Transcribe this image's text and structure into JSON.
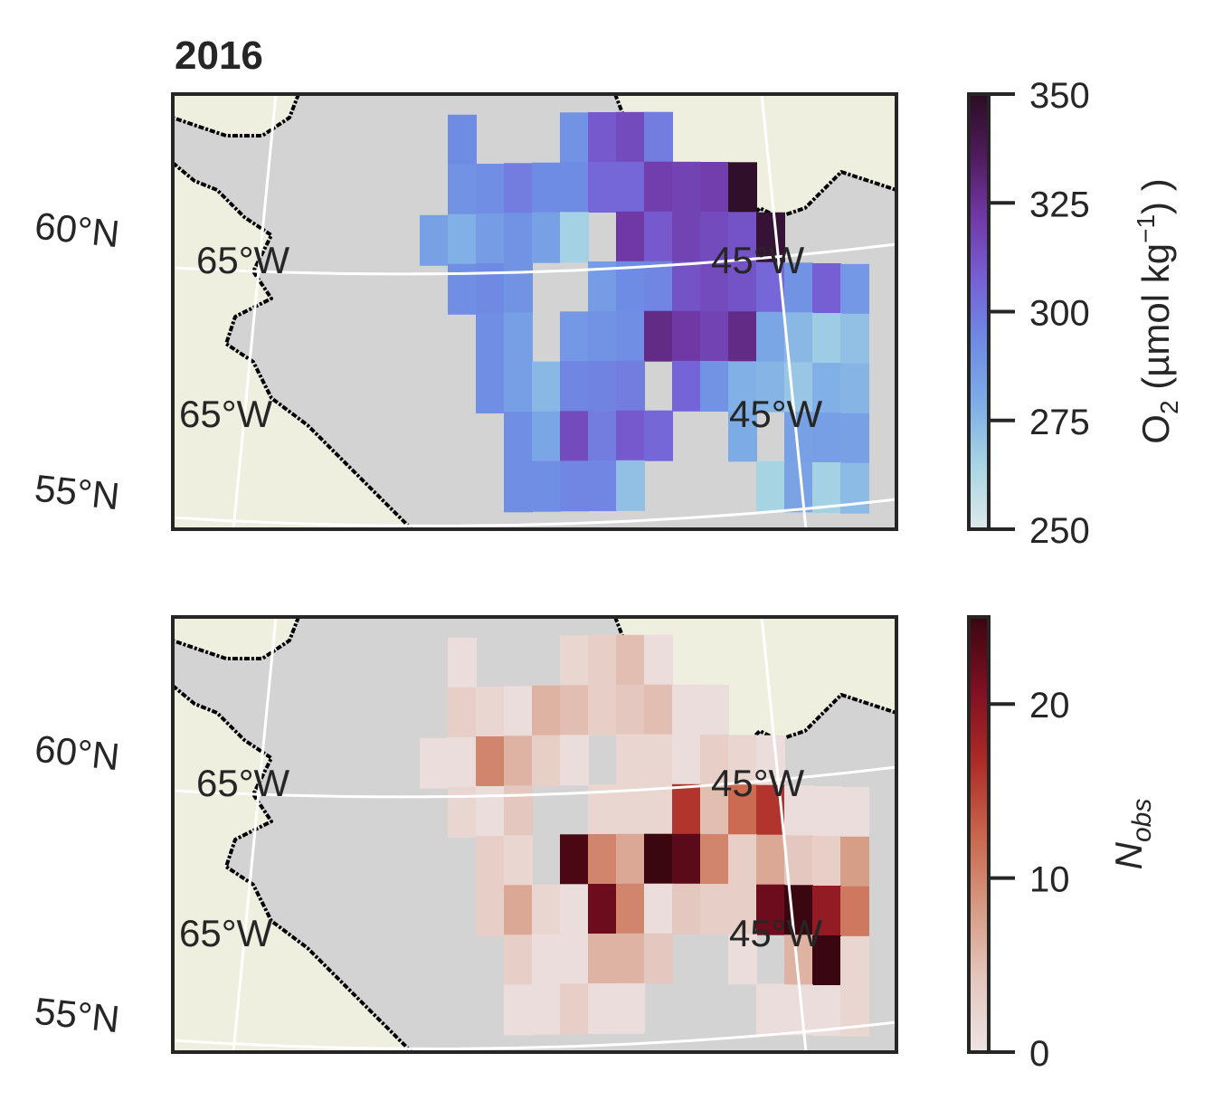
{
  "title": "2016",
  "colors": {
    "ocean": "#d3d3d3",
    "land": "#efefdf",
    "coast": "#000000",
    "grid": "#ffffff",
    "frame": "#262626",
    "o2_colormap": [
      "#dde9ea",
      "#a9d6e3",
      "#7eaee6",
      "#6f8ce4",
      "#7661d6",
      "#7139a8",
      "#501b5e",
      "#2a0d22"
    ],
    "nobs_colormap": [
      "#ede4e4",
      "#e4c7bd",
      "#d69a82",
      "#c8654c",
      "#ad2b27",
      "#7f0f22",
      "#3a0610"
    ]
  },
  "grid_labels": {
    "lat_north": "60°N",
    "lat_south": "55°N",
    "lon_west": "65°W",
    "lon_east": "45°W"
  },
  "chart_data": [
    {
      "type": "heatmap",
      "name": "dissolved oxygen",
      "colorbar": {
        "label_main": "O",
        "label_sub": "2",
        "label_rest": " (µmol kg",
        "label_sup": "−1",
        "label_end": ") )",
        "min": 250,
        "max": 350,
        "ticks": [
          "250",
          "275",
          "300",
          "325",
          "350"
        ]
      },
      "lat_lines": [
        "55°N",
        "60°N"
      ],
      "lon_lines": [
        "65°W",
        "45°W"
      ],
      "rows": [
        [
          null,
          null,
          null,
          293,
          null,
          null,
          null,
          290,
          310,
          315,
          298,
          null,
          null,
          null,
          null,
          null,
          null,
          null
        ],
        [
          null,
          null,
          null,
          290,
          292,
          298,
          293,
          293,
          305,
          305,
          320,
          318,
          320,
          348,
          null,
          null,
          null,
          null
        ],
        [
          null,
          null,
          284,
          278,
          286,
          290,
          284,
          266,
          null,
          322,
          310,
          318,
          315,
          312,
          345,
          null,
          null,
          null
        ],
        [
          null,
          null,
          null,
          292,
          294,
          290,
          null,
          null,
          286,
          293,
          295,
          312,
          315,
          312,
          305,
          290,
          308,
          288
        ],
        [
          null,
          null,
          null,
          null,
          292,
          285,
          null,
          288,
          290,
          292,
          328,
          322,
          318,
          328,
          282,
          275,
          268,
          272
        ],
        [
          null,
          null,
          null,
          null,
          292,
          285,
          275,
          295,
          296,
          298,
          null,
          306,
          290,
          278,
          276,
          270,
          278,
          276
        ],
        [
          null,
          null,
          null,
          null,
          null,
          292,
          282,
          315,
          298,
          310,
          305,
          null,
          null,
          280,
          null,
          284,
          285,
          284
        ],
        [
          null,
          null,
          null,
          null,
          null,
          292,
          292,
          295,
          295,
          272,
          null,
          null,
          null,
          null,
          265,
          283,
          266,
          274
        ]
      ]
    },
    {
      "type": "heatmap",
      "name": "observation count",
      "colorbar": {
        "label_main": "N",
        "label_sub": "obs",
        "min": 0,
        "max": 25,
        "ticks": [
          "0",
          "10",
          "20"
        ]
      },
      "lat_lines": [
        "55°N",
        "60°N"
      ],
      "lon_lines": [
        "65°W",
        "45°W"
      ],
      "rows": [
        [
          null,
          null,
          null,
          1,
          null,
          null,
          null,
          2,
          3,
          5,
          1,
          null,
          null,
          null,
          null,
          null,
          null,
          null
        ],
        [
          null,
          null,
          null,
          3,
          2,
          1,
          6,
          5,
          3,
          4,
          5,
          1,
          1,
          null,
          null,
          null,
          null,
          null
        ],
        [
          null,
          null,
          1,
          1,
          10,
          6,
          3,
          1,
          null,
          2,
          2,
          1,
          3,
          2,
          1,
          null,
          null,
          null
        ],
        [
          null,
          null,
          null,
          2,
          1,
          4,
          null,
          null,
          2,
          2,
          2,
          16,
          5,
          12,
          16,
          1,
          1,
          1
        ],
        [
          null,
          null,
          null,
          null,
          3,
          2,
          null,
          24,
          10,
          7,
          25,
          23,
          10,
          3,
          7,
          4,
          3,
          8
        ],
        [
          null,
          null,
          null,
          null,
          3,
          7,
          2,
          1,
          22,
          10,
          1,
          4,
          3,
          3,
          22,
          25,
          19,
          11
        ],
        [
          null,
          null,
          null,
          null,
          null,
          3,
          1,
          1,
          6,
          6,
          4,
          null,
          null,
          1,
          null,
          6,
          25,
          2
        ],
        [
          null,
          null,
          null,
          null,
          null,
          1,
          1,
          3,
          1,
          1,
          null,
          null,
          null,
          null,
          1,
          1,
          1,
          2
        ]
      ]
    }
  ]
}
